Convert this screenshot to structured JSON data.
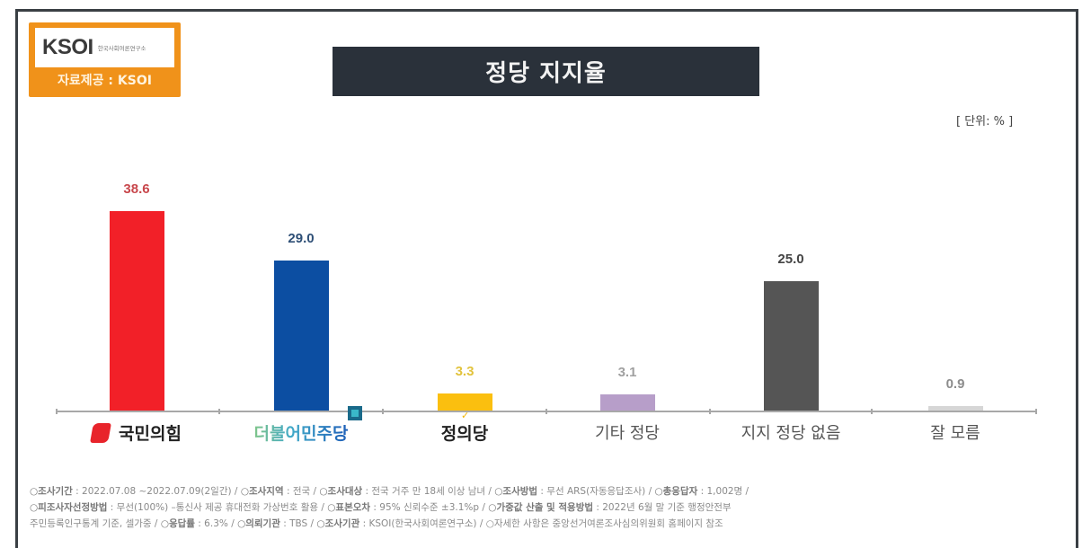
{
  "logo": {
    "brand": "KSOI",
    "subtitle": "한국사회여론연구소",
    "caption": "자료제공 : KSOI",
    "color": "#f0921a"
  },
  "title": "정당 지지율",
  "unit_label": "[ 단위: % ]",
  "chart_data": {
    "type": "bar",
    "title": "정당 지지율",
    "xlabel": "",
    "ylabel": "",
    "unit": "%",
    "categories": [
      "국민의힘",
      "더불어민주당",
      "정의당",
      "기타 정당",
      "지지 정당 없음",
      "잘 모름"
    ],
    "values": [
      38.6,
      29.0,
      3.3,
      3.1,
      25.0,
      0.9
    ],
    "value_labels": [
      "38.6",
      "29.0",
      "3.3",
      "3.1",
      "25.0",
      "0.9"
    ],
    "colors": [
      "#f22028",
      "#0c4ea2",
      "#fbbf0f",
      "#b79ec9",
      "#555555",
      "#d6d6d6"
    ],
    "label_colors": [
      "#c8474c",
      "#2e4f76",
      "#e2c33c",
      "#a0a0a0",
      "#444444",
      "#8c8c8c"
    ],
    "ylim": [
      0,
      40
    ],
    "grid": false,
    "legend": "none"
  },
  "footnote": {
    "line1": [
      {
        "k": "○조사기간",
        "v": " : 2022.07.08 ~2022.07.09(2일간) / "
      },
      {
        "k": "○조사지역",
        "v": " : 전국 / "
      },
      {
        "k": "○조사대상",
        "v": " : 전국 거주 만 18세 이상 남녀 / "
      },
      {
        "k": "○조사방법",
        "v": " : 무선 ARS(자동응답조사) / "
      },
      {
        "k": "○총응답자",
        "v": " : 1,002명 /"
      }
    ],
    "line2": [
      {
        "k": "○피조사자선정방법",
        "v": " : 무선(100%) –통신사 제공 휴대전화 가상번호 활용 / "
      },
      {
        "k": "○표본오차",
        "v": " : 95% 신뢰수준 ±3.1%p / "
      },
      {
        "k": "○가중값 산출 및 적용방법",
        "v": " : 2022년 6월 말 기준 행정안전부"
      }
    ],
    "line3": [
      {
        "k": "",
        "v": "주민등록인구통계 기준, 셀가중 / "
      },
      {
        "k": "○응답률",
        "v": " : 6.3% / "
      },
      {
        "k": "○의뢰기관",
        "v": " : TBS / "
      },
      {
        "k": "○조사기관",
        "v": " : KSOI(한국사회여론연구소) / ○자세한 사항은 중앙선거여론조사심의위원회 홈페이지 참조"
      }
    ]
  }
}
